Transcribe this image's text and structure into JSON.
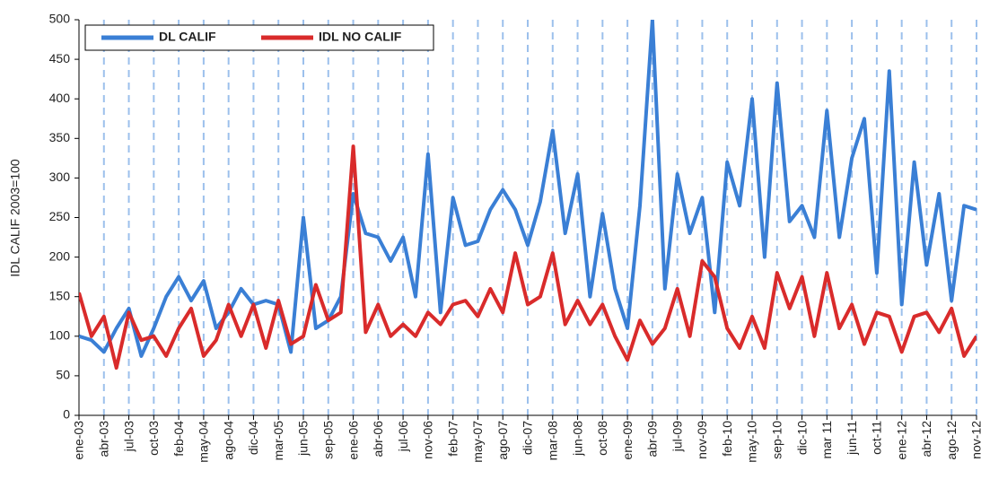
{
  "chart_data": {
    "type": "line",
    "y_label": "IDL CALIF 2003=100",
    "categories": [
      "ene-03",
      null,
      "abr-03",
      null,
      "jul-03",
      null,
      "oct-03",
      null,
      "feb-04",
      null,
      "may-04",
      null,
      "ago-04",
      null,
      "dic-04",
      null,
      "mar-05",
      null,
      "jun-05",
      null,
      "sep-05",
      null,
      "ene-06",
      null,
      "abr-06",
      null,
      "jul-06",
      null,
      "nov-06",
      null,
      "feb-07",
      null,
      "may-07",
      null,
      "ago-07",
      null,
      "dic-07",
      null,
      "mar-08",
      null,
      "jun-08",
      null,
      "oct-08",
      null,
      "ene-09",
      null,
      "abr-09",
      null,
      "jul-09",
      null,
      "nov-09",
      null,
      "feb-10",
      null,
      "may-10",
      null,
      "sep-10",
      null,
      "dic-10",
      null,
      "mar 11",
      null,
      "jun-11",
      null,
      "oct-11",
      null,
      "ene-12",
      null,
      "abr-12",
      null,
      "ago-12",
      null,
      "nov-12"
    ],
    "series": [
      {
        "name": "DL CALIF",
        "color": "#3a7fd5",
        "values": [
          100,
          95,
          80,
          110,
          135,
          75,
          110,
          150,
          175,
          145,
          170,
          110,
          130,
          160,
          140,
          145,
          140,
          80,
          250,
          110,
          120,
          150,
          280,
          230,
          225,
          195,
          225,
          150,
          330,
          130,
          275,
          215,
          220,
          260,
          285,
          260,
          215,
          270,
          360,
          230,
          305,
          150,
          255,
          160,
          110,
          265,
          500,
          160,
          305,
          230,
          275,
          130,
          320,
          265,
          400,
          200,
          420,
          245,
          265,
          225,
          385,
          225,
          325,
          375,
          180,
          435,
          140,
          320,
          190,
          280,
          145,
          265,
          260
        ]
      },
      {
        "name": "IDL NO CALIF",
        "color": "#d92b2b",
        "values": [
          155,
          100,
          125,
          60,
          130,
          95,
          100,
          75,
          110,
          135,
          75,
          95,
          140,
          100,
          140,
          85,
          145,
          90,
          100,
          165,
          120,
          130,
          340,
          105,
          140,
          100,
          115,
          100,
          130,
          115,
          140,
          145,
          125,
          160,
          130,
          205,
          140,
          150,
          205,
          115,
          145,
          115,
          140,
          100,
          70,
          120,
          90,
          110,
          160,
          100,
          195,
          175,
          110,
          85,
          125,
          85,
          180,
          135,
          175,
          100,
          180,
          110,
          140,
          90,
          130,
          125,
          80,
          125,
          130,
          105,
          135,
          75,
          100
        ]
      }
    ],
    "ylim": [
      0,
      500
    ],
    "yticks": [
      0,
      50,
      100,
      150,
      200,
      250,
      300,
      350,
      400,
      450,
      500
    ],
    "grid": "x-dashed",
    "legend": "upper left"
  }
}
